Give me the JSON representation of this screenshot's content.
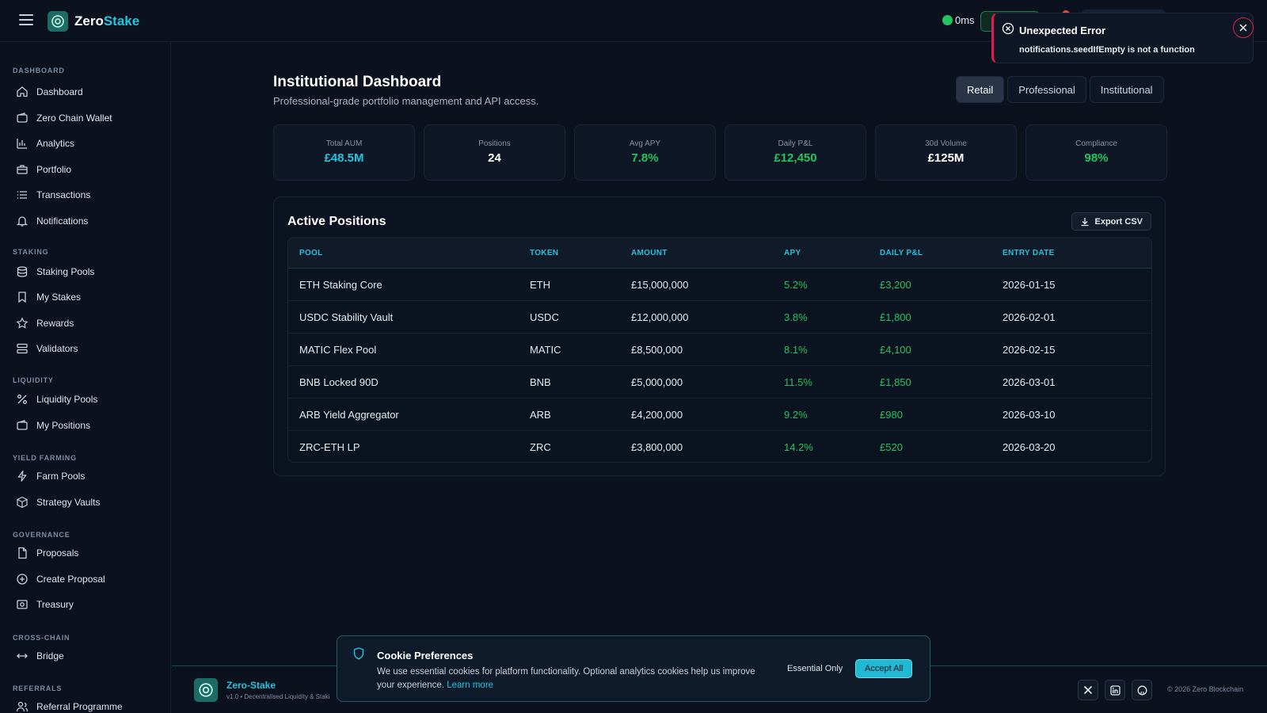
{
  "app": {
    "brand_main": "Zero",
    "brand_accent": "Stake"
  },
  "topbar": {
    "latency": "0ms"
  },
  "sidebar": {
    "sections": [
      {
        "title": "DASHBOARD",
        "items": [
          "Dashboard",
          "Zero Chain Wallet",
          "Analytics",
          "Portfolio",
          "Transactions",
          "Notifications"
        ]
      },
      {
        "title": "STAKING",
        "items": [
          "Staking Pools",
          "My Stakes",
          "Rewards",
          "Validators"
        ]
      },
      {
        "title": "LIQUIDITY",
        "items": [
          "Liquidity Pools",
          "My Positions"
        ]
      },
      {
        "title": "YIELD FARMING",
        "items": [
          "Farm Pools",
          "Strategy Vaults"
        ]
      },
      {
        "title": "GOVERNANCE",
        "items": [
          "Proposals",
          "Create Proposal",
          "Treasury"
        ]
      },
      {
        "title": "CROSS-CHAIN",
        "items": [
          "Bridge"
        ]
      },
      {
        "title": "REFERRALS",
        "items": [
          "Referral Programme"
        ]
      }
    ]
  },
  "page": {
    "title": "Institutional Dashboard",
    "subtitle": "Professional-grade portfolio management and API access.",
    "tabs": [
      "Retail",
      "Professional",
      "Institutional"
    ],
    "active_tab": "Retail"
  },
  "stats": [
    {
      "label": "Total AUM",
      "value": "£48.5M",
      "color": "#21c7e0"
    },
    {
      "label": "Positions",
      "value": "24",
      "color": "#ffffff"
    },
    {
      "label": "Avg APY",
      "value": "7.8%",
      "color": "#22c55e"
    },
    {
      "label": "Daily P&L",
      "value": "£12,450",
      "color": "#22c55e"
    },
    {
      "label": "30d Volume",
      "value": "£125M",
      "color": "#ffffff"
    },
    {
      "label": "Compliance",
      "value": "98%",
      "color": "#22c55e"
    }
  ],
  "positions": {
    "title": "Active Positions",
    "export_label": "Export CSV",
    "columns": [
      "POOL",
      "TOKEN",
      "AMOUNT",
      "APY",
      "DAILY P&L",
      "ENTRY DATE"
    ],
    "rows": [
      [
        "ETH Staking Core",
        "ETH",
        "£15,000,000",
        "5.2%",
        "£3,200",
        "2026-01-15"
      ],
      [
        "USDC Stability Vault",
        "USDC",
        "£12,000,000",
        "3.8%",
        "£1,800",
        "2026-02-01"
      ],
      [
        "MATIC Flex Pool",
        "MATIC",
        "£8,500,000",
        "8.1%",
        "£4,100",
        "2026-02-15"
      ],
      [
        "BNB Locked 90D",
        "BNB",
        "£5,000,000",
        "11.5%",
        "£1,850",
        "2026-03-01"
      ],
      [
        "ARB Yield Aggregator",
        "ARB",
        "£4,200,000",
        "9.2%",
        "£980",
        "2026-03-10"
      ],
      [
        "ZRC-ETH LP",
        "ZRC",
        "£3,800,000",
        "14.2%",
        "£520",
        "2026-03-20"
      ]
    ]
  },
  "footer": {
    "name": "Zero-Stake",
    "version": "v1.0 • Decentralised Liquidity & Staki",
    "copyright": "© 2026 Zero Blockchain"
  },
  "cookie": {
    "title": "Cookie Preferences",
    "text": "We use essential cookies for platform functionality. Optional analytics cookies help us improve your experience.",
    "link": "Learn more",
    "essential_label": "Essential Only",
    "accept_label": "Accept All"
  },
  "toast": {
    "title": "Unexpected Error",
    "message": "notifications.seedIfEmpty is not a function"
  },
  "colors": {
    "accent": "#21c7e0",
    "positive": "#22c55e",
    "error": "#e11d48"
  }
}
